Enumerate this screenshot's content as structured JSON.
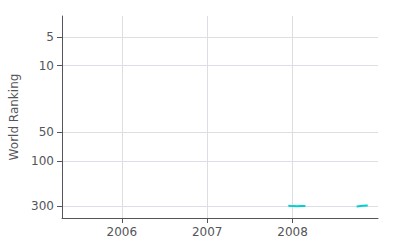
{
  "chart_data": {
    "type": "line",
    "ylabel": "World Ranking",
    "log": "y",
    "grid": true,
    "xlim": [
      2005.3,
      2009.0
    ],
    "xticks": [
      2006,
      2007,
      2008
    ],
    "ylim": [
      400,
      3
    ],
    "yticks": [
      5,
      10,
      50,
      100,
      300
    ],
    "series": [
      {
        "color": "#00d0d0",
        "x": [
          2007.95,
          2008.0,
          2008.05,
          2008.1,
          2008.15
        ],
        "values": [
          298,
          300,
          301,
          300,
          299
        ]
      },
      {
        "color": "#00d0d0",
        "x": [
          2008.75,
          2008.82,
          2008.88
        ],
        "values": [
          302,
          298,
          295
        ]
      }
    ]
  }
}
